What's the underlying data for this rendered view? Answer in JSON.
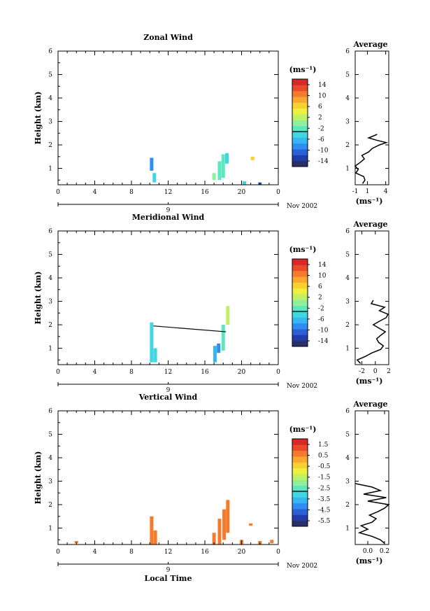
{
  "panels": [
    {
      "id": "zonal",
      "title": "Zonal Wind",
      "ylabel": "Height (km)",
      "x_ticks": [
        "0",
        "4",
        "8",
        "12",
        "16",
        "20",
        "0"
      ],
      "y_ticks": [
        "1",
        "2",
        "3",
        "4",
        "5",
        "6"
      ],
      "date_label": "9",
      "month_label": "Nov 2002",
      "xlabel": "",
      "colorbar": {
        "unit": "(ms⁻¹)",
        "labels": [
          "14",
          "10",
          "6",
          "2",
          "-2",
          "-6",
          "-10",
          "-14"
        ]
      },
      "average": {
        "title": "Average",
        "x_ticks": [
          "-1",
          "1",
          "4"
        ],
        "xlabel": "(ms⁻¹)",
        "y_ticks": [
          "1",
          "2",
          "3",
          "4",
          "5",
          "6"
        ]
      }
    },
    {
      "id": "meridional",
      "title": "Meridional Wind",
      "ylabel": "Height (km)",
      "x_ticks": [
        "0",
        "4",
        "8",
        "12",
        "16",
        "20",
        "0"
      ],
      "y_ticks": [
        "1",
        "2",
        "3",
        "4",
        "5",
        "6"
      ],
      "date_label": "9",
      "month_label": "Nov 2002",
      "xlabel": "",
      "colorbar": {
        "unit": "(ms⁻¹)",
        "labels": [
          "14",
          "10",
          "6",
          "2",
          "-2",
          "-6",
          "-10",
          "-14"
        ]
      },
      "average": {
        "title": "Average",
        "x_ticks": [
          "-2",
          "0",
          "2"
        ],
        "xlabel": "(ms⁻¹)",
        "y_ticks": [
          "1",
          "2",
          "3",
          "4",
          "5",
          "6"
        ]
      }
    },
    {
      "id": "vertical",
      "title": "Vertical Wind",
      "ylabel": "Height (km)",
      "x_ticks": [
        "0",
        "4",
        "8",
        "12",
        "16",
        "20",
        "0"
      ],
      "y_ticks": [
        "1",
        "2",
        "3",
        "4",
        "5",
        "6"
      ],
      "date_label": "9",
      "month_label": "Nov 2002",
      "xlabel": "Local Time",
      "colorbar": {
        "unit": "(ms⁻¹)",
        "labels": [
          "1.5",
          "0.5",
          "-0.5",
          "-1.5",
          "-2.5",
          "-3.5",
          "-4.5",
          "-5.5"
        ]
      },
      "average": {
        "title": "Average",
        "x_ticks": [
          "0.0",
          "0.2"
        ],
        "xlabel": "(ms⁻¹)",
        "y_ticks": [
          "1",
          "2",
          "3",
          "4",
          "5",
          "6"
        ]
      }
    }
  ],
  "colors": {
    "colorbar": [
      "#2a2f6b",
      "#1e3da8",
      "#2a5fd6",
      "#2f8cf0",
      "#36b6f2",
      "#3fd8e0",
      "#5ee6c0",
      "#8ef09a",
      "#c0f066",
      "#eef040",
      "#f8d030",
      "#f8a830",
      "#f47a2c",
      "#e84a2a",
      "#d8282a"
    ]
  },
  "chart_data": [
    {
      "type": "heatmap",
      "title": "Zonal Wind",
      "xlabel": "",
      "ylabel": "Height (km)",
      "xlim": [
        0,
        24
      ],
      "ylim": [
        0.3,
        6
      ],
      "zlim": [
        -14,
        14
      ],
      "cells": [
        {
          "t": 10.2,
          "h": [
            0.9,
            1.45
          ],
          "w": -8
        },
        {
          "t": 10.5,
          "h": [
            0.4,
            0.8
          ],
          "w": -3
        },
        {
          "t": 17.0,
          "h": [
            0.5,
            0.8
          ],
          "w": 0
        },
        {
          "t": 17.6,
          "h": [
            0.5,
            1.3
          ],
          "w": -1
        },
        {
          "t": 18.0,
          "h": [
            0.6,
            1.6
          ],
          "w": -2
        },
        {
          "t": 18.4,
          "h": [
            1.2,
            1.65
          ],
          "w": -3
        },
        {
          "t": 20.3,
          "h": [
            0.3,
            0.45
          ],
          "w": -4
        },
        {
          "t": 21.2,
          "h": [
            1.35,
            1.5
          ],
          "w": 6
        },
        {
          "t": 22.0,
          "h": [
            0.3,
            0.4
          ],
          "w": -10
        }
      ],
      "average_profile": {
        "xlim": [
          -1,
          4.5
        ],
        "heights": [
          0.35,
          0.5,
          0.65,
          0.8,
          0.95,
          1.1,
          1.25,
          1.4,
          1.55,
          1.7,
          1.85,
          2.0,
          2.1,
          2.2,
          2.3,
          2.45
        ],
        "values": [
          0.2,
          0.6,
          0.4,
          -0.9,
          -0.5,
          -1.0,
          -0.2,
          0.5,
          0.1,
          1.2,
          1.8,
          3.0,
          4.1,
          2.5,
          1.2,
          2.6
        ]
      }
    },
    {
      "type": "heatmap",
      "title": "Meridional Wind",
      "xlabel": "",
      "ylabel": "Height (km)",
      "xlim": [
        0,
        24
      ],
      "ylim": [
        0.3,
        6
      ],
      "zlim": [
        -14,
        14
      ],
      "cells": [
        {
          "t": 10.2,
          "h": [
            0.4,
            2.1
          ],
          "w": -3
        },
        {
          "t": 10.6,
          "h": [
            0.4,
            1.0
          ],
          "w": -4
        },
        {
          "t": 17.1,
          "h": [
            0.4,
            1.1
          ],
          "w": -6
        },
        {
          "t": 17.5,
          "h": [
            0.8,
            1.2
          ],
          "w": -7
        },
        {
          "t": 18.0,
          "h": [
            0.9,
            2.0
          ],
          "w": -1
        },
        {
          "t": 18.5,
          "h": [
            2.0,
            2.8
          ],
          "w": 1
        }
      ],
      "average_profile": {
        "xlim": [
          -3,
          2
        ],
        "heights": [
          0.35,
          0.5,
          0.65,
          0.8,
          0.95,
          1.1,
          1.25,
          1.4,
          1.55,
          1.7,
          1.85,
          2.0,
          2.15,
          2.3,
          2.45,
          2.6,
          2.75,
          2.9,
          3.05
        ],
        "values": [
          -2.2,
          -2.7,
          -1.5,
          -0.5,
          0.8,
          1.2,
          0.5,
          0.2,
          0.8,
          1.5,
          0.6,
          -0.3,
          0.6,
          1.6,
          1.9,
          0.6,
          1.4,
          -0.6,
          -0.3
        ]
      }
    },
    {
      "type": "heatmap",
      "title": "Vertical Wind",
      "xlabel": "Local Time",
      "ylabel": "Height (km)",
      "xlim": [
        0,
        24
      ],
      "ylim": [
        0.3,
        6
      ],
      "zlim": [
        -5.5,
        1.5
      ],
      "cells": [
        {
          "t": 2.0,
          "h": [
            0.35,
            0.45
          ],
          "w": 0.5
        },
        {
          "t": 10.2,
          "h": [
            0.3,
            1.5
          ],
          "w": 0.5
        },
        {
          "t": 10.6,
          "h": [
            0.3,
            0.9
          ],
          "w": 0.5
        },
        {
          "t": 17.0,
          "h": [
            0.3,
            0.8
          ],
          "w": 0.5
        },
        {
          "t": 17.6,
          "h": [
            0.3,
            1.4
          ],
          "w": 0.5
        },
        {
          "t": 18.1,
          "h": [
            0.5,
            1.8
          ],
          "w": 0.5
        },
        {
          "t": 18.5,
          "h": [
            0.8,
            2.2
          ],
          "w": 0.5
        },
        {
          "t": 20.0,
          "h": [
            0.3,
            0.5
          ],
          "w": 0.5
        },
        {
          "t": 21.0,
          "h": [
            1.1,
            1.2
          ],
          "w": 0.5
        },
        {
          "t": 22.0,
          "h": [
            0.3,
            0.45
          ],
          "w": 0.5
        },
        {
          "t": 23.3,
          "h": [
            0.35,
            0.5
          ],
          "w": 0.5
        }
      ],
      "average_profile": {
        "xlim": [
          -0.15,
          0.25
        ],
        "heights": [
          0.35,
          0.5,
          0.65,
          0.8,
          0.95,
          1.1,
          1.25,
          1.4,
          1.55,
          1.7,
          1.85,
          2.0,
          2.15,
          2.3,
          2.45,
          2.6,
          2.75,
          2.9
        ],
        "values": [
          0.2,
          0.15,
          0.05,
          -0.1,
          0.0,
          -0.08,
          0.05,
          0.1,
          0.02,
          0.12,
          0.2,
          0.25,
          0.0,
          0.22,
          -0.05,
          0.15,
          0.05,
          -0.15
        ]
      }
    }
  ]
}
